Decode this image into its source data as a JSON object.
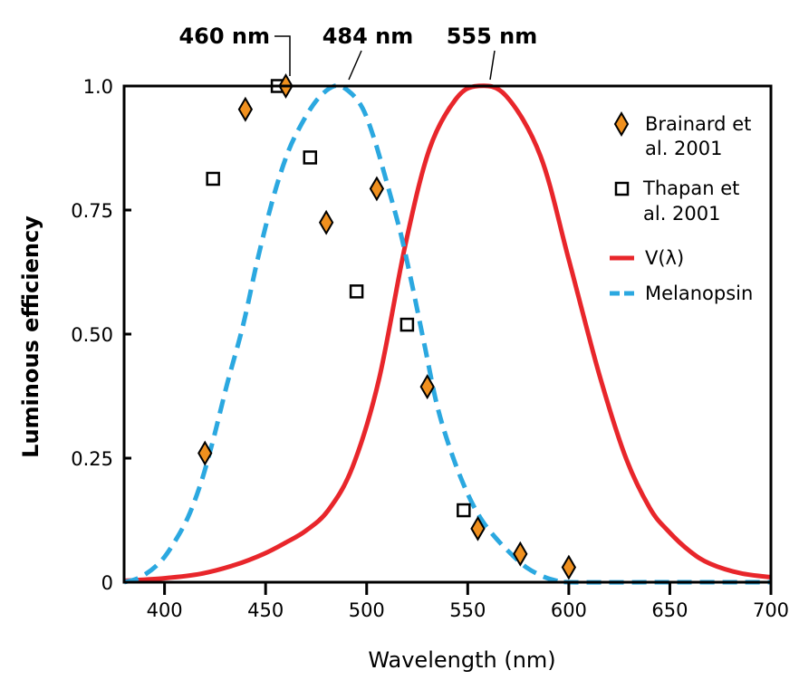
{
  "chart_data": {
    "type": "line",
    "title": "",
    "xlabel": "Wavelength (nm)",
    "ylabel": "Luminous efficiency",
    "xlim": [
      380,
      700
    ],
    "ylim": [
      0,
      1.0
    ],
    "xticks": [
      400,
      450,
      500,
      550,
      600,
      650,
      700
    ],
    "xtick_labels": [
      "400",
      "450",
      "500",
      "550",
      "600",
      "650",
      "700"
    ],
    "yticks": [
      0,
      0.25,
      0.5,
      0.75,
      1.0
    ],
    "ytick_labels": [
      "0",
      "0.25",
      "0.50",
      "0.75",
      "1.0"
    ],
    "grid": false,
    "legend_position": "top-right",
    "annotations": [
      {
        "text": "460 nm",
        "x": 460
      },
      {
        "text": "484 nm",
        "x": 484
      },
      {
        "text": "555 nm",
        "x": 555
      }
    ],
    "series": [
      {
        "name": "Brainard et al. 2001",
        "name_lines": [
          "Brainard et",
          "al. 2001"
        ],
        "kind": "scatter",
        "marker": "diamond",
        "color": "#F0901E",
        "x": [
          420,
          440,
          460,
          480,
          505,
          530,
          555,
          576,
          600
        ],
        "y": [
          0.26,
          0.953,
          1.0,
          0.725,
          0.793,
          0.394,
          0.108,
          0.057,
          0.03
        ]
      },
      {
        "name": "Thapan et al. 2001",
        "name_lines": [
          "Thapan et",
          "al. 2001"
        ],
        "kind": "scatter",
        "marker": "square-open",
        "color": "#000000",
        "x": [
          424,
          456,
          472,
          495,
          520,
          548
        ],
        "y": [
          0.813,
          1.0,
          0.856,
          0.586,
          0.519,
          0.145
        ]
      },
      {
        "name": "V(λ)",
        "kind": "line",
        "style": "solid",
        "color": "#E8262B",
        "x": [
          380,
          400,
          418,
          435,
          449,
          460,
          470,
          481,
          493,
          506,
          519,
          531,
          544,
          555,
          569,
          586,
          600,
          615,
          628,
          640,
          649,
          660,
          670,
          685,
          700
        ],
        "y": [
          0.003,
          0.008,
          0.017,
          0.035,
          0.057,
          0.08,
          0.104,
          0.145,
          0.232,
          0.407,
          0.677,
          0.872,
          0.973,
          1.0,
          0.98,
          0.859,
          0.65,
          0.42,
          0.253,
          0.15,
          0.104,
          0.062,
          0.037,
          0.018,
          0.01
        ]
      },
      {
        "name": "Melanopsin",
        "kind": "line",
        "style": "dashed",
        "color": "#2BA8E0",
        "x": [
          380,
          388,
          397,
          404,
          411.5,
          418,
          424,
          431,
          439,
          446,
          453.5,
          460,
          466,
          475,
          484,
          491,
          498,
          504,
          510,
          517,
          523,
          529,
          535,
          542,
          550,
          557,
          565,
          572,
          579,
          587,
          594,
          600,
          650,
          700
        ],
        "y": [
          0.0,
          0.01,
          0.037,
          0.075,
          0.13,
          0.2,
          0.286,
          0.4,
          0.52,
          0.65,
          0.771,
          0.855,
          0.91,
          0.97,
          1.0,
          0.99,
          0.955,
          0.89,
          0.805,
          0.7,
          0.589,
          0.47,
          0.354,
          0.26,
          0.178,
          0.125,
          0.084,
          0.055,
          0.03,
          0.012,
          0.003,
          0.0,
          0.0,
          0.0
        ]
      }
    ]
  }
}
